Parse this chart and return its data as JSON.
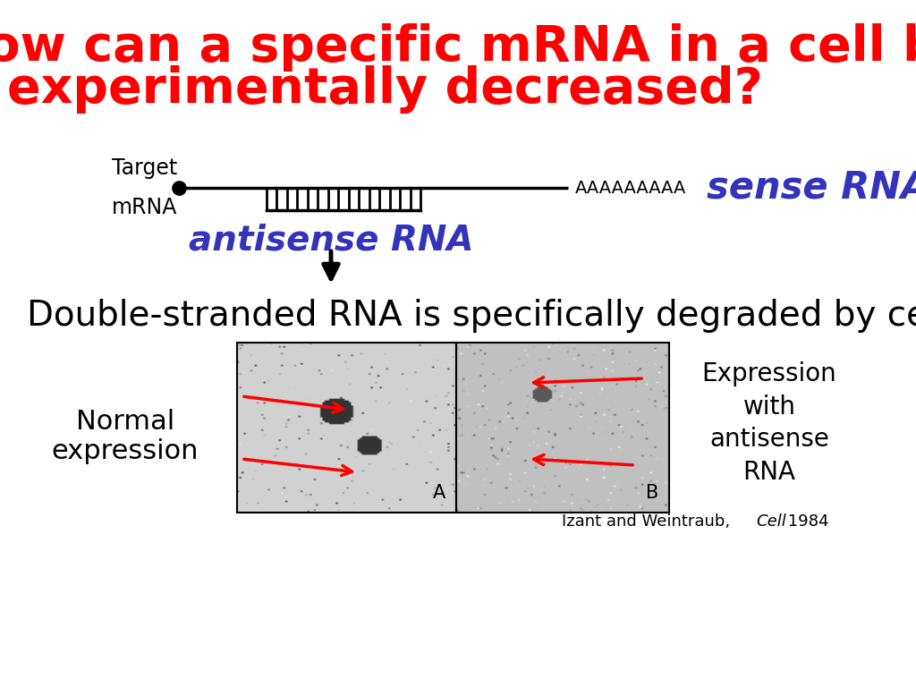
{
  "title_line1": "How can a specific mRNA in a cell be",
  "title_line2": "experimentally decreased?",
  "title_color": "#ff0000",
  "title_fontsize": 40,
  "title_weight": "bold",
  "bg_color": "#ffffff",
  "poly_a": "AAAAAAAAA",
  "sense_rna_label": "sense RNA",
  "antisense_rna_label": "antisense RNA",
  "rna_label_color": "#3333bb",
  "arrow_text": "Double-stranded RNA is specifically degraded by cell",
  "arrow_text_fontsize": 28,
  "normal_expr_label": "Normal\nexpression",
  "expr_antisense_label": "Expression\nwith\nantisense\nRNA",
  "citation_plain": "Izant and Weintraub, ",
  "citation_italic": "Cell",
  "citation_end": " 1984"
}
